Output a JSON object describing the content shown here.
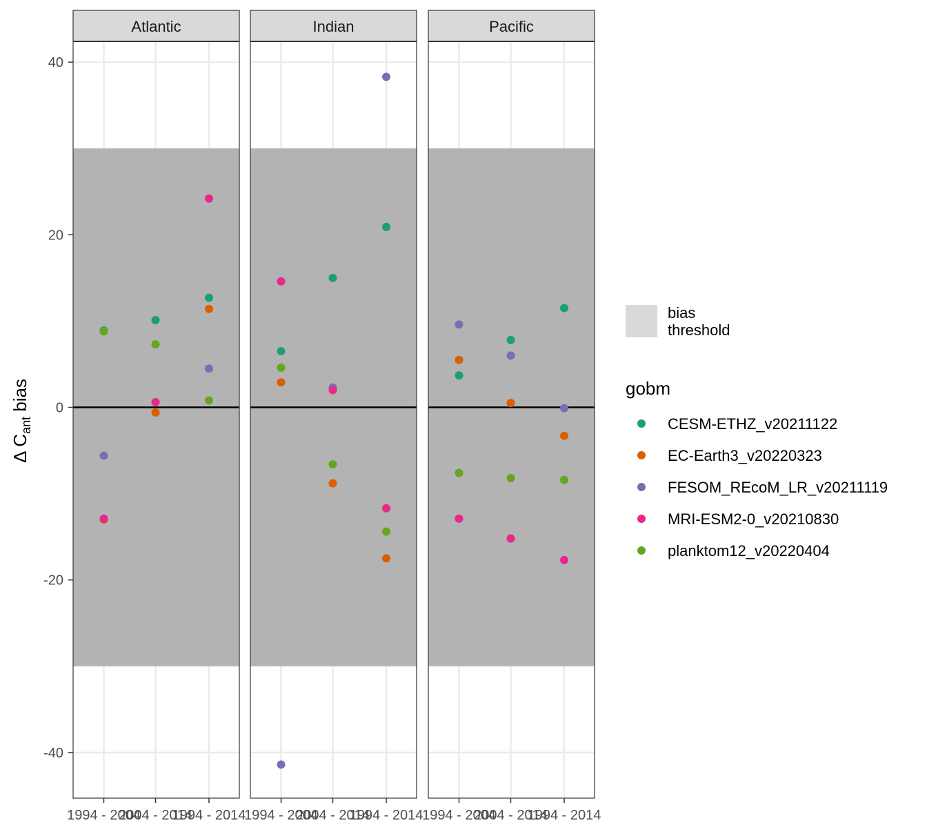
{
  "chart_data": {
    "type": "scatter",
    "facets": [
      "Atlantic",
      "Indian",
      "Pacific"
    ],
    "categories": [
      "1994 - 2004",
      "2004 - 2014",
      "1994 - 2014"
    ],
    "ylabel": {
      "prefix": "Δ C",
      "subscript": "ant",
      "suffix": " bias"
    },
    "ylim": [
      -45,
      42
    ],
    "yticks": [
      -40,
      -20,
      0,
      20,
      40
    ],
    "threshold_band": [
      -30,
      30
    ],
    "reference_line": 0,
    "grid": true,
    "legend_position": "right",
    "band_legend": {
      "line1": "bias",
      "line2": "threshold"
    },
    "legend_title": "gobm",
    "colors": {
      "band": "#b3b3b3",
      "band_key": "#d9d9d9",
      "strip": "#d9d9d9",
      "grid": "#ebebeb"
    },
    "series": [
      {
        "name": "CESM-ETHZ_v20211122",
        "color": "#1b9e77",
        "values": {
          "Atlantic": [
            8.9,
            10.1,
            12.7
          ],
          "Indian": [
            6.5,
            15.0,
            20.9
          ],
          "Pacific": [
            3.7,
            7.8,
            11.5
          ]
        }
      },
      {
        "name": "EC-Earth3_v20220323",
        "color": "#d95f02",
        "values": {
          "Atlantic": [
            -13.0,
            -0.6,
            11.4
          ],
          "Indian": [
            2.9,
            -8.8,
            -17.5
          ],
          "Pacific": [
            5.5,
            0.5,
            -3.3
          ]
        }
      },
      {
        "name": "FESOM_REcoM_LR_v20211119",
        "color": "#7570b3",
        "values": {
          "Atlantic": [
            -5.6,
            0.6,
            4.5
          ],
          "Indian": [
            -41.4,
            2.3,
            38.3
          ],
          "Pacific": [
            9.6,
            6.0,
            -0.1
          ]
        }
      },
      {
        "name": "MRI-ESM2-0_v20210830",
        "color": "#e7298a",
        "values": {
          "Atlantic": [
            -12.9,
            0.6,
            24.2
          ],
          "Indian": [
            14.6,
            2.0,
            -11.7
          ],
          "Pacific": [
            -12.9,
            -15.2,
            -17.7
          ]
        }
      },
      {
        "name": "planktom12_v20220404",
        "color": "#66a61e",
        "values": {
          "Atlantic": [
            8.8,
            7.3,
            0.8
          ],
          "Indian": [
            4.6,
            -6.6,
            -14.4
          ],
          "Pacific": [
            -7.6,
            -8.2,
            -8.4
          ]
        }
      }
    ]
  }
}
